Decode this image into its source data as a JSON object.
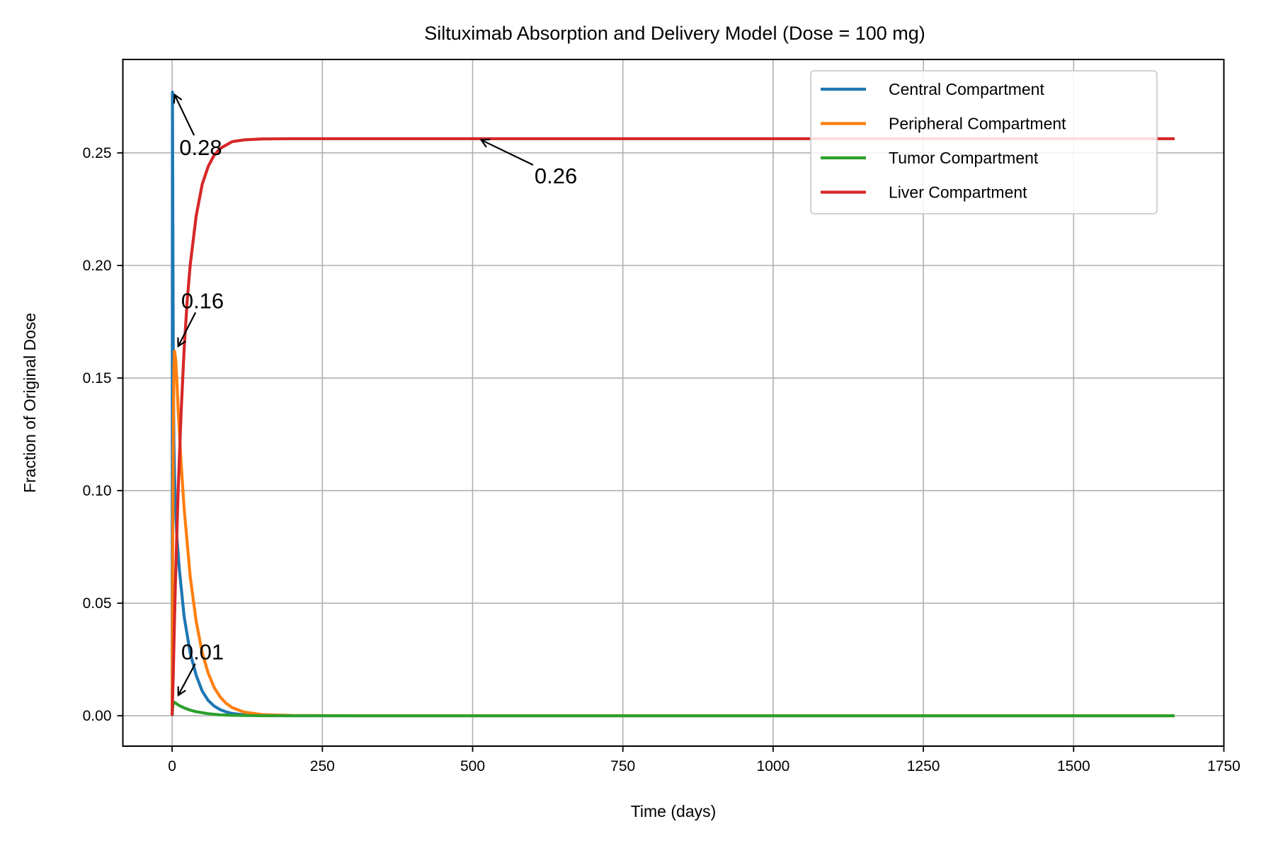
{
  "chart_data": {
    "type": "line",
    "title": "Siltuximab Absorption and Delivery Model (Dose = 100 mg)",
    "xlabel": "Time (days)",
    "ylabel": "Fraction of Original Dose",
    "xlim": [
      -82,
      1750
    ],
    "ylim": [
      -0.0135,
      0.2915
    ],
    "xticks": [
      0,
      250,
      500,
      750,
      1000,
      1250,
      1500,
      1750
    ],
    "xtick_labels": [
      "0",
      "250",
      "500",
      "750",
      "1000",
      "1250",
      "1500",
      "1750"
    ],
    "yticks": [
      0.0,
      0.05,
      0.1,
      0.15,
      0.2,
      0.25
    ],
    "ytick_labels": [
      "0.00",
      "0.05",
      "0.10",
      "0.15",
      "0.20",
      "0.25"
    ],
    "grid": true,
    "legend_position": "upper right",
    "series": [
      {
        "name": "Central Compartment",
        "color": "#1f77b4",
        "x": [
          0,
          0.5,
          1,
          2,
          3,
          5,
          8,
          12,
          20,
          30,
          40,
          50,
          60,
          70,
          80,
          90,
          100,
          120,
          150,
          200,
          300,
          500,
          1000,
          1668
        ],
        "y": [
          0.0,
          0.277,
          0.236,
          0.15,
          0.12,
          0.095,
          0.079,
          0.065,
          0.044,
          0.028,
          0.018,
          0.011,
          0.0068,
          0.0043,
          0.0027,
          0.0017,
          0.001,
          0.0004,
          0.0001,
          0.0,
          0.0,
          0.0,
          0.0,
          0.0
        ]
      },
      {
        "name": "Peripheral Compartment",
        "color": "#ff7f0e",
        "x": [
          0,
          1,
          2,
          3,
          4,
          6,
          8,
          10,
          15,
          20,
          30,
          40,
          50,
          60,
          70,
          80,
          90,
          100,
          120,
          150,
          200,
          300,
          500,
          1000,
          1668
        ],
        "y": [
          0.0,
          0.08,
          0.13,
          0.155,
          0.162,
          0.158,
          0.148,
          0.136,
          0.112,
          0.092,
          0.062,
          0.042,
          0.028,
          0.019,
          0.0125,
          0.0083,
          0.0055,
          0.0036,
          0.0016,
          0.0005,
          0.0001,
          0.0,
          0.0,
          0.0,
          0.0
        ]
      },
      {
        "name": "Tumor Compartment",
        "color": "#2ca02c",
        "x": [
          0,
          1,
          2,
          3,
          5,
          8,
          12,
          20,
          30,
          40,
          60,
          80,
          100,
          150,
          200,
          500,
          1000,
          1668
        ],
        "y": [
          0.0,
          0.004,
          0.0055,
          0.006,
          0.0058,
          0.0052,
          0.0045,
          0.0035,
          0.0025,
          0.0018,
          0.0009,
          0.0004,
          0.0002,
          0.0,
          0.0,
          0.0,
          0.0,
          0.0
        ]
      },
      {
        "name": "Liver Compartment",
        "color": "#d62728",
        "x": [
          0,
          2,
          5,
          10,
          15,
          20,
          25,
          30,
          40,
          50,
          60,
          70,
          80,
          100,
          120,
          150,
          200,
          300,
          500,
          1000,
          1668
        ],
        "y": [
          0.0,
          0.02,
          0.055,
          0.1,
          0.135,
          0.163,
          0.184,
          0.2,
          0.222,
          0.236,
          0.244,
          0.249,
          0.252,
          0.255,
          0.2558,
          0.2562,
          0.2563,
          0.2563,
          0.2563,
          0.2563,
          0.2563
        ]
      }
    ],
    "annotations": [
      {
        "text": "0.28",
        "point": [
          2,
          0.277
        ],
        "text_pos": [
          12,
          0.249
        ]
      },
      {
        "text": "0.16",
        "point": [
          8,
          0.163
        ],
        "text_pos": [
          15,
          0.181
        ]
      },
      {
        "text": "0.01",
        "point": [
          8,
          0.008
        ],
        "text_pos": [
          15,
          0.025
        ]
      },
      {
        "text": "0.26",
        "point": [
          510,
          0.2563
        ],
        "text_pos": [
          603,
          0.2365
        ]
      }
    ]
  }
}
